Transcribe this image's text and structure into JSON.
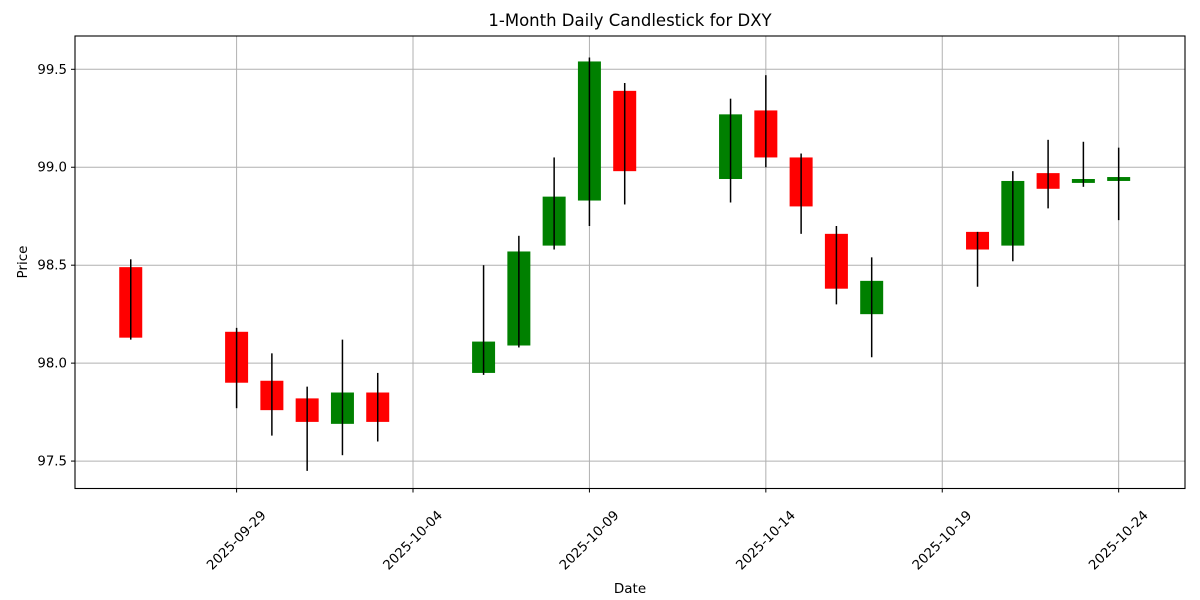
{
  "chart_data": {
    "type": "candlestick",
    "title": "1-Month Daily Candlestick for DXY",
    "xlabel": "Date",
    "ylabel": "Price",
    "symbol": "DXY",
    "grid": true,
    "legend": "none",
    "up_color": "#008000",
    "down_color": "#ff0000",
    "wick_color": "#000000",
    "grid_color": "#b0b0b0",
    "spine_color": "#000000",
    "start_date": "2025-09-26",
    "x_tick_labels": [
      "2025-09-29",
      "2025-10-04",
      "2025-10-09",
      "2025-10-14",
      "2025-10-19",
      "2025-10-24"
    ],
    "x_tick_rotation_deg": 45,
    "y_tick_labels": [
      "97.5",
      "98.0",
      "98.5",
      "99.0",
      "99.5"
    ],
    "y_ticks": [
      97.5,
      98.0,
      98.5,
      99.0,
      99.5
    ],
    "ylim": [
      97.36,
      99.67
    ],
    "xlim_days": [
      -1.58,
      29.88
    ],
    "candles": [
      {
        "date": "2025-09-26",
        "open": 98.49,
        "high": 98.53,
        "low": 98.12,
        "close": 98.13
      },
      {
        "date": "2025-09-29",
        "open": 98.16,
        "high": 98.18,
        "low": 97.77,
        "close": 97.9
      },
      {
        "date": "2025-09-30",
        "open": 97.91,
        "high": 98.05,
        "low": 97.63,
        "close": 97.76
      },
      {
        "date": "2025-10-01",
        "open": 97.82,
        "high": 97.88,
        "low": 97.45,
        "close": 97.7
      },
      {
        "date": "2025-10-02",
        "open": 97.69,
        "high": 98.12,
        "low": 97.53,
        "close": 97.85
      },
      {
        "date": "2025-10-03",
        "open": 97.85,
        "high": 97.95,
        "low": 97.6,
        "close": 97.7
      },
      {
        "date": "2025-10-06",
        "open": 97.95,
        "high": 98.5,
        "low": 97.94,
        "close": 98.11
      },
      {
        "date": "2025-10-07",
        "open": 98.09,
        "high": 98.65,
        "low": 98.08,
        "close": 98.57
      },
      {
        "date": "2025-10-08",
        "open": 98.6,
        "high": 99.05,
        "low": 98.58,
        "close": 98.85
      },
      {
        "date": "2025-10-09",
        "open": 98.83,
        "high": 99.56,
        "low": 98.7,
        "close": 99.54
      },
      {
        "date": "2025-10-10",
        "open": 99.39,
        "high": 99.43,
        "low": 98.81,
        "close": 98.98
      },
      {
        "date": "2025-10-13",
        "open": 98.94,
        "high": 99.35,
        "low": 98.82,
        "close": 99.27
      },
      {
        "date": "2025-10-14",
        "open": 99.29,
        "high": 99.47,
        "low": 99.0,
        "close": 99.05
      },
      {
        "date": "2025-10-15",
        "open": 99.05,
        "high": 99.07,
        "low": 98.66,
        "close": 98.8
      },
      {
        "date": "2025-10-16",
        "open": 98.66,
        "high": 98.7,
        "low": 98.3,
        "close": 98.38
      },
      {
        "date": "2025-10-17",
        "open": 98.25,
        "high": 98.54,
        "low": 98.03,
        "close": 98.42
      },
      {
        "date": "2025-10-20",
        "open": 98.67,
        "high": 98.67,
        "low": 98.39,
        "close": 98.58
      },
      {
        "date": "2025-10-21",
        "open": 98.6,
        "high": 98.98,
        "low": 98.52,
        "close": 98.93
      },
      {
        "date": "2025-10-22",
        "open": 98.97,
        "high": 99.14,
        "low": 98.79,
        "close": 98.89
      },
      {
        "date": "2025-10-23",
        "open": 98.92,
        "high": 99.13,
        "low": 98.9,
        "close": 98.94
      },
      {
        "date": "2025-10-24",
        "open": 98.93,
        "high": 99.1,
        "low": 98.73,
        "close": 98.95
      }
    ]
  }
}
